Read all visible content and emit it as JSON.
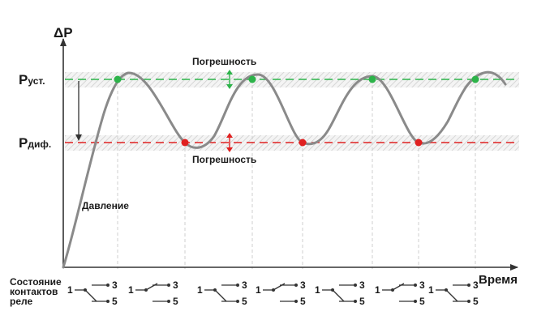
{
  "y_axis_label": "ΔP",
  "x_axis_label": "Время",
  "p_set": {
    "main": "P",
    "sub": "уст."
  },
  "p_diff": {
    "main": "P",
    "sub": "диф."
  },
  "error_label_top": "Погрешность",
  "error_label_bottom": "Погрешность",
  "curve_label": "Давление",
  "relay_caption": [
    "Состояние",
    "контактов",
    "реле"
  ],
  "relay_terminals": {
    "common": "1",
    "no": "3",
    "nc": "5"
  },
  "relay_states": [
    "rest",
    "switched",
    "rest",
    "switched",
    "rest",
    "switched",
    "rest"
  ],
  "colors": {
    "set_line": "#2db34a",
    "diff_line": "#e02020",
    "curve": "#8a8a8a",
    "axis": "#333333",
    "hatch": "#d6d6d6"
  }
}
